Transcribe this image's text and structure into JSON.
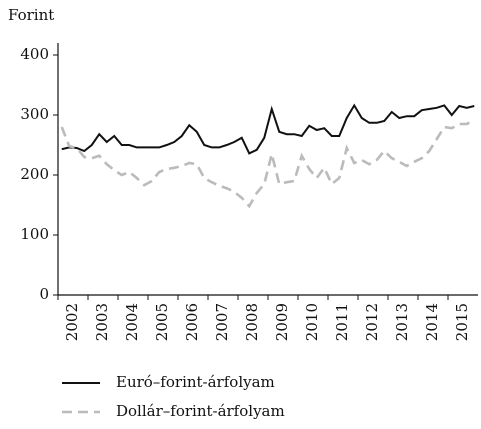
{
  "chart_data": {
    "type": "line",
    "y_label": "Forint",
    "x": [
      2002.125,
      2002.375,
      2002.625,
      2002.875,
      2003.125,
      2003.375,
      2003.625,
      2003.875,
      2004.125,
      2004.375,
      2004.625,
      2004.875,
      2005.125,
      2005.375,
      2005.625,
      2005.875,
      2006.125,
      2006.375,
      2006.625,
      2006.875,
      2007.125,
      2007.375,
      2007.625,
      2007.875,
      2008.125,
      2008.375,
      2008.625,
      2008.875,
      2009.125,
      2009.375,
      2009.625,
      2009.875,
      2010.125,
      2010.375,
      2010.625,
      2010.875,
      2011.125,
      2011.375,
      2011.625,
      2011.875,
      2012.125,
      2012.375,
      2012.625,
      2012.875,
      2013.125,
      2013.375,
      2013.625,
      2013.875,
      2014.125,
      2014.375,
      2014.625,
      2014.875,
      2015.125,
      2015.375,
      2015.625,
      2015.875
    ],
    "series": [
      {
        "name": "Euró–forint-árfolyam",
        "color": "#111111",
        "dash": false,
        "values": [
          243,
          246,
          245,
          240,
          250,
          268,
          255,
          265,
          250,
          250,
          246,
          246,
          246,
          246,
          250,
          255,
          265,
          283,
          272,
          250,
          246,
          246,
          250,
          255,
          262,
          236,
          242,
          262,
          310,
          272,
          268,
          268,
          265,
          282,
          275,
          278,
          265,
          265,
          295,
          316,
          295,
          287,
          287,
          290,
          305,
          295,
          298,
          298,
          308,
          310,
          312,
          316,
          300,
          315,
          312,
          315
        ]
      },
      {
        "name": "Dollár–forint-árfolyam",
        "color": "#bbbbbb",
        "dash": true,
        "values": [
          280,
          248,
          245,
          230,
          228,
          232,
          218,
          208,
          200,
          205,
          195,
          183,
          190,
          205,
          210,
          212,
          215,
          220,
          218,
          195,
          188,
          182,
          178,
          172,
          162,
          148,
          170,
          185,
          235,
          185,
          188,
          190,
          232,
          210,
          195,
          212,
          185,
          195,
          245,
          220,
          225,
          218,
          225,
          240,
          228,
          222,
          215,
          222,
          228,
          240,
          260,
          280,
          278,
          285,
          285,
          292
        ]
      }
    ],
    "xlim": [
      2002,
      2016
    ],
    "xticks": [
      2002,
      2003,
      2004,
      2005,
      2006,
      2007,
      2008,
      2009,
      2010,
      2011,
      2012,
      2013,
      2014,
      2015
    ],
    "ylim": [
      0,
      420
    ],
    "yticks": [
      0,
      100,
      200,
      300,
      400
    ]
  }
}
